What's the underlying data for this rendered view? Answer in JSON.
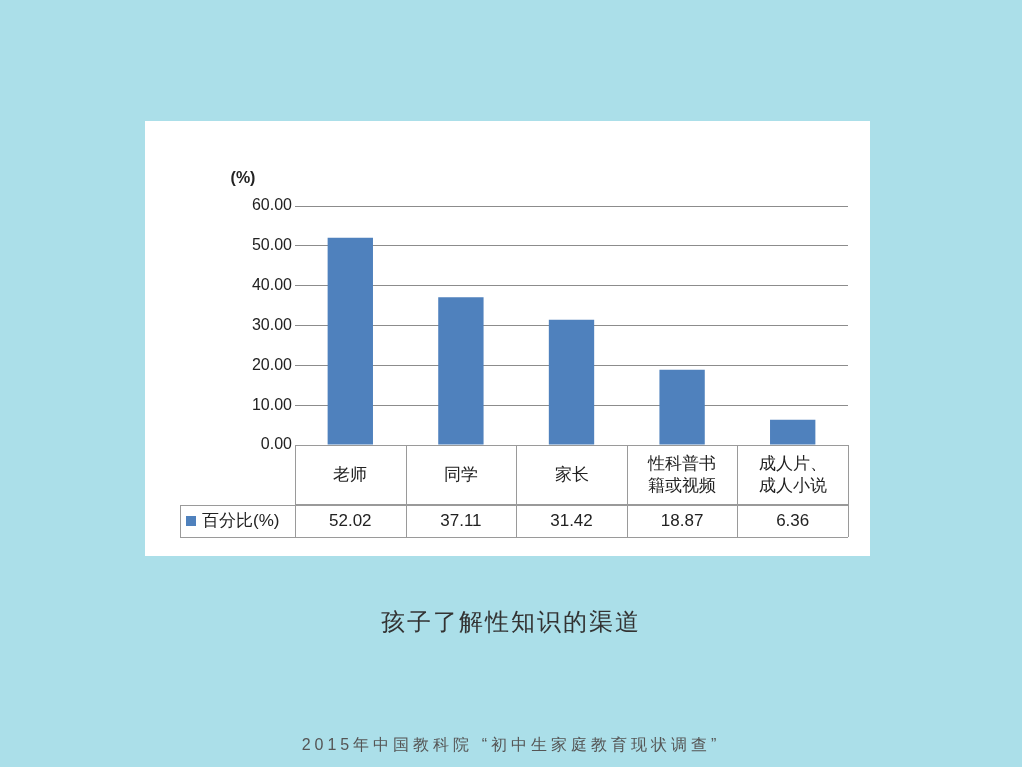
{
  "chart_data": {
    "type": "bar",
    "title": "孩子了解性知识的渠道",
    "ylabel": "(%)",
    "annotations": [
      "2015年中国教科院 “初中生家庭教育现状调查”"
    ],
    "categories": [
      "老师",
      "同学",
      "家长",
      "性科普书籍或视频",
      "成人片、成人小说"
    ],
    "series": [
      {
        "name": "百分比(%)",
        "color": "#4f81bd",
        "values": [
          52.02,
          37.11,
          31.42,
          18.87,
          6.36
        ]
      }
    ],
    "ylim": [
      0,
      60
    ],
    "yticks": [
      {
        "value": 0,
        "label": "0.00"
      },
      {
        "value": 10,
        "label": "10.00"
      },
      {
        "value": 20,
        "label": "20.00"
      },
      {
        "value": 30,
        "label": "30.00"
      },
      {
        "value": 40,
        "label": "40.00"
      },
      {
        "value": 50,
        "label": "50.00"
      },
      {
        "value": 60,
        "label": "60.00"
      }
    ],
    "grid": "y",
    "legend": "bottom",
    "data_labels": true
  }
}
